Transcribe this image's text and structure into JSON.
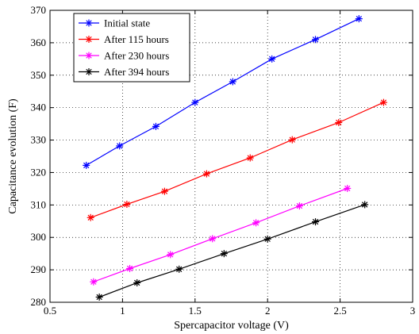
{
  "chart_data": {
    "type": "line",
    "title": "",
    "xlabel": "Spercapacitor voltage (V)",
    "ylabel": "Capacitance evolution (F)",
    "xlim": [
      0.5,
      3
    ],
    "ylim": [
      280,
      370
    ],
    "xticks": [
      "0.5",
      "1",
      "1.5",
      "2",
      "2.5",
      "3"
    ],
    "yticks": [
      "280",
      "290",
      "300",
      "310",
      "320",
      "330",
      "340",
      "350",
      "360",
      "370"
    ],
    "grid": true,
    "legend_position": "top-left",
    "marker": "asterisk",
    "series": [
      {
        "name": "Initial state",
        "color": "#0000ff",
        "points": [
          [
            0.75,
            322.2
          ],
          [
            0.98,
            328.2
          ],
          [
            1.23,
            334.2
          ],
          [
            1.5,
            341.6
          ],
          [
            1.76,
            348.0
          ],
          [
            2.03,
            355.0
          ],
          [
            2.33,
            361.0
          ],
          [
            2.63,
            367.4
          ]
        ]
      },
      {
        "name": "After 115 hours",
        "color": "#ff0000",
        "points": [
          [
            0.78,
            306.1
          ],
          [
            1.03,
            310.2
          ],
          [
            1.29,
            314.2
          ],
          [
            1.58,
            319.6
          ],
          [
            1.88,
            324.5
          ],
          [
            2.17,
            330.1
          ],
          [
            2.49,
            335.4
          ],
          [
            2.8,
            341.6
          ]
        ]
      },
      {
        "name": "After 230 hours",
        "color": "#ff00ff",
        "points": [
          [
            0.8,
            286.3
          ],
          [
            1.05,
            290.4
          ],
          [
            1.33,
            294.7
          ],
          [
            1.62,
            299.6
          ],
          [
            1.92,
            304.5
          ],
          [
            2.22,
            309.7
          ],
          [
            2.55,
            315.1
          ]
        ]
      },
      {
        "name": "After 394 hours",
        "color": "#000000",
        "points": [
          [
            0.84,
            281.6
          ],
          [
            1.1,
            286.0
          ],
          [
            1.39,
            290.2
          ],
          [
            1.7,
            295.0
          ],
          [
            2.0,
            299.5
          ],
          [
            2.33,
            304.8
          ],
          [
            2.67,
            310.1
          ]
        ]
      }
    ]
  }
}
